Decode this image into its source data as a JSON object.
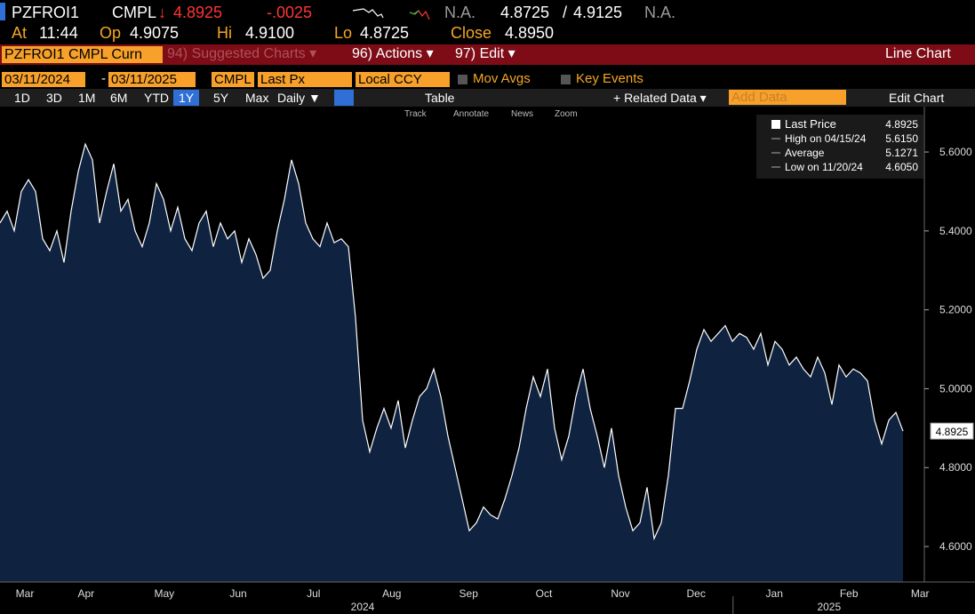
{
  "header": {
    "ticker": "PZFROI1",
    "source": "CMPL",
    "arrow": "↓",
    "last": "4.8925",
    "change": "-.0025",
    "bid_na": "N.A.",
    "bid": "4.8725",
    "slash": "/",
    "ask": "4.9125",
    "ask_na": "N.A."
  },
  "quote": {
    "at_label": "At",
    "at": "11:44",
    "op_label": "Op",
    "op": "4.9075",
    "hi_label": "Hi",
    "hi": "4.9100",
    "lo_label": "Lo",
    "lo": "4.8725",
    "close_label": "Close",
    "close": "4.8950"
  },
  "toolbar": {
    "security": "PZFROI1 CMPL Curn",
    "suggested": "94) Suggested Charts ▾",
    "actions": "96) Actions ▾",
    "edit": "97) Edit ▾",
    "mode": "Line Chart"
  },
  "settings": {
    "start": "03/11/2024",
    "dash": "-",
    "end": "03/11/2025",
    "source": "CMPL",
    "field": "Last Px",
    "currency": "Local CCY",
    "mov_avgs": "Mov Avgs",
    "key_events": "Key Events"
  },
  "periods": {
    "items": [
      "1D",
      "3D",
      "1M",
      "6M",
      "YTD",
      "1Y",
      "5Y",
      "Max"
    ],
    "selected": 5,
    "frequency": "Daily ▼",
    "table": "Table",
    "related": "+ Related Data ▾",
    "add_data": "Add Data",
    "edit_chart": "Edit Chart"
  },
  "tools": [
    "Track",
    "Annotate",
    "News",
    "Zoom"
  ],
  "legend": [
    {
      "label": "Last Price",
      "value": "4.8925"
    },
    {
      "label": "High on 04/15/24",
      "value": "5.6150"
    },
    {
      "label": "Average",
      "value": "5.1271"
    },
    {
      "label": "Low on 11/20/24",
      "value": "4.6050"
    }
  ],
  "chart_data": {
    "type": "line",
    "color": "#ffffff",
    "fill": "#0f2240",
    "values": [
      5.42,
      5.45,
      5.4,
      5.5,
      5.53,
      5.5,
      5.38,
      5.35,
      5.4,
      5.32,
      5.45,
      5.55,
      5.62,
      5.58,
      5.42,
      5.5,
      5.57,
      5.45,
      5.48,
      5.4,
      5.36,
      5.42,
      5.52,
      5.48,
      5.4,
      5.46,
      5.38,
      5.35,
      5.42,
      5.45,
      5.36,
      5.42,
      5.38,
      5.4,
      5.32,
      5.38,
      5.34,
      5.28,
      5.3,
      5.4,
      5.48,
      5.58,
      5.52,
      5.42,
      5.38,
      5.36,
      5.42,
      5.37,
      5.38,
      5.36,
      5.18,
      4.92,
      4.84,
      4.9,
      4.95,
      4.9,
      4.97,
      4.85,
      4.92,
      4.98,
      5.0,
      5.05,
      4.98,
      4.88,
      4.8,
      4.72,
      4.64,
      4.66,
      4.7,
      4.68,
      4.67,
      4.72,
      4.78,
      4.85,
      4.95,
      5.03,
      4.98,
      5.05,
      4.9,
      4.82,
      4.88,
      4.98,
      5.05,
      4.95,
      4.88,
      4.8,
      4.9,
      4.78,
      4.7,
      4.64,
      4.66,
      4.75,
      4.62,
      4.66,
      4.78,
      4.95,
      4.95,
      5.02,
      5.1,
      5.15,
      5.12,
      5.14,
      5.16,
      5.12,
      5.14,
      5.13,
      5.1,
      5.14,
      5.06,
      5.12,
      5.1,
      5.06,
      5.08,
      5.05,
      5.03,
      5.08,
      5.04,
      4.96,
      5.06,
      5.03,
      5.05,
      5.04,
      5.02,
      4.92,
      4.86,
      4.92,
      4.94,
      4.8925
    ],
    "xlim": [
      0,
      130
    ],
    "xticks": [
      {
        "value": 3.5,
        "label": "Mar"
      },
      {
        "value": 12.1,
        "label": "Apr"
      },
      {
        "value": 23.1,
        "label": "May"
      },
      {
        "value": 33.5,
        "label": "Jun"
      },
      {
        "value": 44.1,
        "label": "Jul"
      },
      {
        "value": 55.1,
        "label": "Aug"
      },
      {
        "value": 65.9,
        "label": "Sep"
      },
      {
        "value": 76.5,
        "label": "Oct"
      },
      {
        "value": 87.25,
        "label": "Nov"
      },
      {
        "value": 97.9,
        "label": "Dec"
      },
      {
        "value": 108.9,
        "label": "Jan"
      },
      {
        "value": 119.4,
        "label": "Feb"
      },
      {
        "value": 129.4,
        "label": "Mar"
      }
    ],
    "year_ticks": [
      {
        "value": 51,
        "label": "2024"
      },
      {
        "value": 116.6,
        "label": "2025"
      }
    ],
    "year_divider": 103.1,
    "ylim": [
      4.51,
      5.715
    ],
    "yticks": [
      {
        "value": 4.6,
        "label": "4.6000"
      },
      {
        "value": 4.8,
        "label": "4.8000"
      },
      {
        "value": 5.0,
        "label": "5.0000"
      },
      {
        "value": 5.2,
        "label": "5.2000"
      },
      {
        "value": 5.4,
        "label": "5.4000"
      },
      {
        "value": 5.6,
        "label": "5.6000"
      }
    ],
    "grid": false
  }
}
